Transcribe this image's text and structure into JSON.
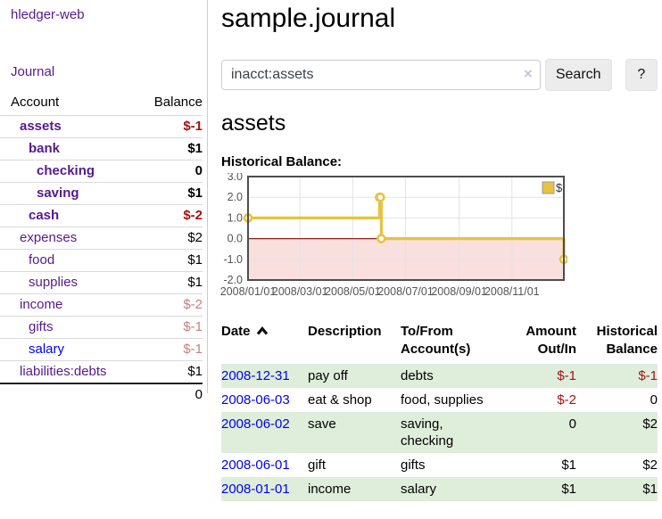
{
  "app": {
    "brand": "hledger-web",
    "nav_journal": "Journal"
  },
  "colors": {
    "accent_purple": "#551a8b",
    "link_blue": "#0000ee",
    "negative_strong": "#a31212",
    "negative_soft": "#c67f7f",
    "row_stripe_green": "#dfeeda",
    "series_gold": "#e8c240"
  },
  "sidebar": {
    "accounts_header": {
      "account": "Account",
      "balance": "Balance"
    },
    "accounts": [
      {
        "name": "assets",
        "balance": "$-1"
      },
      {
        "name": "bank",
        "balance": "$1"
      },
      {
        "name": "checking",
        "balance": "0"
      },
      {
        "name": "saving",
        "balance": "$1"
      },
      {
        "name": "cash",
        "balance": "$-2"
      },
      {
        "name": "expenses",
        "balance": "$2"
      },
      {
        "name": "food",
        "balance": "$1"
      },
      {
        "name": "supplies",
        "balance": "$1"
      },
      {
        "name": "income",
        "balance": "$-2"
      },
      {
        "name": "gifts",
        "balance": "$-1"
      },
      {
        "name": "salary",
        "balance": "$-1"
      },
      {
        "name": "liabilities:debts",
        "balance": "$1"
      }
    ],
    "total": "0"
  },
  "main": {
    "title": "sample.journal",
    "search": {
      "value": "inacct:assets",
      "clear_icon": "×",
      "button": "Search",
      "help_button": "?"
    },
    "account_title": "assets",
    "chart_label": "Historical Balance:"
  },
  "chart_data": {
    "type": "line",
    "step": true,
    "title": "Historical Balance",
    "series": [
      {
        "name": "$",
        "color": "#e8c240",
        "points": [
          [
            "2008-01-01",
            1
          ],
          [
            "2008-06-01",
            2
          ],
          [
            "2008-06-02",
            2
          ],
          [
            "2008-06-03",
            0
          ],
          [
            "2008-12-31",
            -1
          ]
        ]
      }
    ],
    "ylim": [
      -2,
      3
    ],
    "x_range": [
      "2008-01-01",
      "2008-12-31"
    ],
    "y_ticks": [
      "3.0",
      "2.0",
      "1.0",
      "0.0",
      "-1.0",
      "-2.0"
    ],
    "x_ticks": [
      "2008/01/01",
      "2008/03/01",
      "2008/05/01",
      "2008/07/01",
      "2008/09/01",
      "2008/11/01"
    ],
    "grid": true,
    "legend": {
      "label": "$",
      "position": "top-right"
    },
    "zero_line_color": "#8f1d1d",
    "negative_region_fill": "#fadfdf"
  },
  "register": {
    "columns": [
      "Date",
      "Description",
      "To/From Account(s)",
      "Amount Out/In",
      "Historical Balance"
    ],
    "sort": {
      "column": "Date",
      "direction": "ascending"
    },
    "rows": [
      {
        "date": "2008-12-31",
        "description": "pay off",
        "accounts": "debts",
        "amount": "$-1",
        "balance": "$-1"
      },
      {
        "date": "2008-06-03",
        "description": "eat & shop",
        "accounts": "food, supplies",
        "amount": "$-2",
        "balance": "0"
      },
      {
        "date": "2008-06-02",
        "description": "save",
        "accounts": "saving,\nchecking",
        "amount": "0",
        "balance": "$2"
      },
      {
        "date": "2008-06-01",
        "description": "gift",
        "accounts": "gifts",
        "amount": "$1",
        "balance": "$2"
      },
      {
        "date": "2008-01-01",
        "description": "income",
        "accounts": "salary",
        "amount": "$1",
        "balance": "$1"
      }
    ]
  }
}
